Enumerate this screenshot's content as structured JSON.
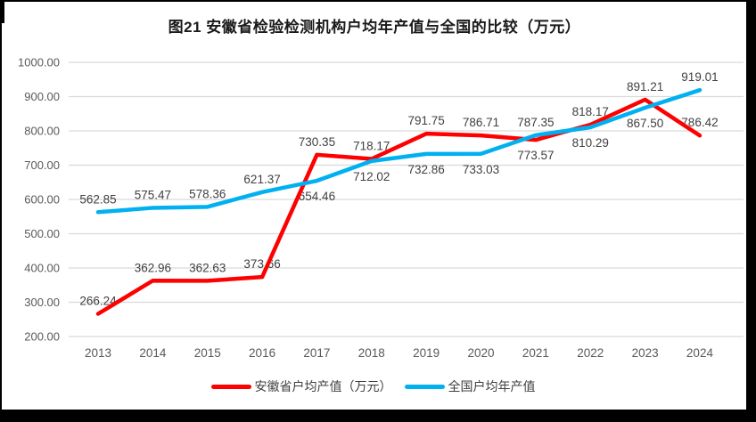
{
  "title": "图21 安徽省检验检测机构户均年产值与全国的比较（万元）",
  "chart_data": {
    "type": "line",
    "categories": [
      "2013",
      "2014",
      "2015",
      "2016",
      "2017",
      "2018",
      "2019",
      "2020",
      "2021",
      "2022",
      "2023",
      "2024"
    ],
    "series": [
      {
        "name": "安徽省户均产值（万元）",
        "color": "#FE0000",
        "values": [
          266.24,
          362.96,
          362.63,
          373.66,
          730.35,
          718.17,
          791.75,
          786.71,
          773.57,
          818.17,
          891.21,
          786.42
        ],
        "label_positions": [
          "above",
          "above",
          "above",
          "above",
          "above",
          "above",
          "above",
          "above",
          "below",
          "above",
          "above",
          "above"
        ]
      },
      {
        "name": "全国户均年产值",
        "color": "#00B0F0",
        "values": [
          562.85,
          575.47,
          578.36,
          621.37,
          654.46,
          712.02,
          732.86,
          733.03,
          787.35,
          810.29,
          867.5,
          919.01
        ],
        "label_positions": [
          "above",
          "above",
          "above",
          "above",
          "below",
          "below",
          "below",
          "below",
          "above",
          "below",
          "below",
          "above"
        ]
      }
    ],
    "ylim": [
      200,
      1000
    ],
    "ytick_step": 100,
    "ytick_labels": [
      "1000.00",
      "900.00",
      "800.00",
      "700.00",
      "600.00",
      "500.00",
      "400.00",
      "300.00",
      "200.00"
    ],
    "value_decimals": 2,
    "grid": "horizontal",
    "legend_position": "bottom",
    "colors": {
      "gridline": "#D9D9D9",
      "axis_text": "#595959",
      "data_label_text": "#404040",
      "title_text": "#1a1a1a",
      "frame": "#000000"
    }
  }
}
